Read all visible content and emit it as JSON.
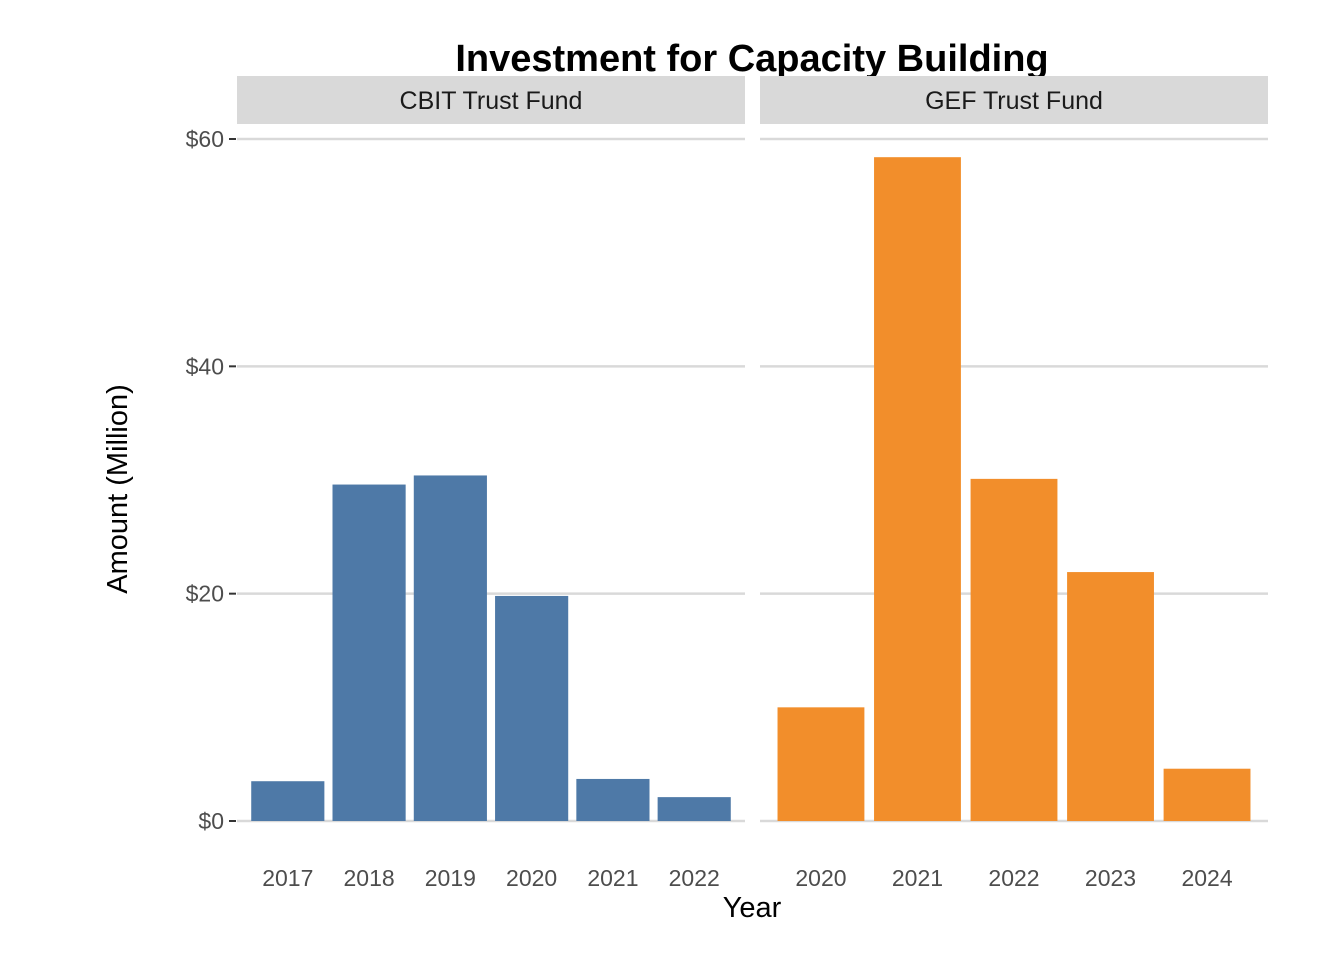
{
  "chart_data": {
    "type": "bar",
    "title": "Investment for Capacity Building",
    "xlabel": "Year",
    "ylabel": "Amount (Million)",
    "ylim": [
      0,
      62
    ],
    "yticks": [
      0,
      20,
      40,
      60
    ],
    "ytick_labels": [
      "$0",
      "$20",
      "$40",
      "$60"
    ],
    "grid": true,
    "legend": "none",
    "facets": [
      {
        "name": "CBIT Trust Fund",
        "color": "#4e79a7",
        "categories": [
          "2017",
          "2018",
          "2019",
          "2020",
          "2021",
          "2022"
        ],
        "values": [
          3.5,
          29.6,
          30.4,
          19.8,
          3.7,
          2.1
        ]
      },
      {
        "name": "GEF Trust Fund",
        "color": "#f28e2b",
        "categories": [
          "2020",
          "2021",
          "2022",
          "2023",
          "2024"
        ],
        "values": [
          10.0,
          58.4,
          30.1,
          21.9,
          4.6
        ]
      }
    ]
  }
}
